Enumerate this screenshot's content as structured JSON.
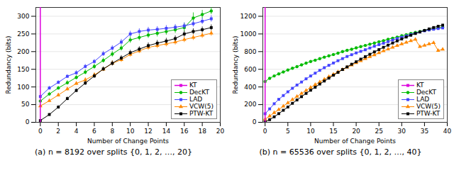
{
  "chart_data": [
    {
      "type": "line",
      "caption": "(a) n = 8192 over splits {0, 1, 2, …, 20}",
      "xlabel": "Number of Change Points",
      "ylabel": "Redundancy (bits)",
      "xlim": [
        -0.5,
        20
      ],
      "ylim": [
        0,
        325
      ],
      "xticks": [
        0,
        2,
        4,
        6,
        8,
        10,
        12,
        14,
        16,
        18,
        20
      ],
      "yticks": [
        0,
        50,
        100,
        150,
        200,
        250,
        300
      ],
      "grid": true,
      "legend": "lower right",
      "x": [
        0,
        1,
        2,
        3,
        4,
        5,
        6,
        7,
        8,
        9,
        10,
        11,
        12,
        13,
        14,
        15,
        16,
        17,
        18,
        19
      ],
      "series": [
        {
          "name": "KT",
          "type": "vline",
          "color": "#dd00dd",
          "marker": "square",
          "x": [
            0
          ]
        },
        {
          "name": "DecKT",
          "color": "#00bb00",
          "marker": "circle",
          "values": [
            60,
            80,
            97,
            112,
            127,
            142,
            158,
            175,
            193,
            210,
            233,
            240,
            247,
            252,
            257,
            262,
            268,
            295,
            305,
            315
          ],
          "yerr": [
            4,
            5,
            5,
            6,
            6,
            7,
            7,
            7,
            8,
            8,
            9,
            9,
            9,
            10,
            10,
            10,
            12,
            15,
            12,
            10
          ]
        },
        {
          "name": "LAD",
          "color": "#4444ff",
          "marker": "square",
          "values": [
            73,
            97,
            113,
            130,
            140,
            158,
            172,
            194,
            210,
            227,
            250,
            257,
            261,
            263,
            266,
            269,
            273,
            279,
            286,
            293
          ],
          "yerr": [
            4,
            5,
            5,
            5,
            6,
            6,
            6,
            7,
            7,
            8,
            8,
            8,
            8,
            8,
            8,
            8,
            9,
            9,
            9,
            9
          ]
        },
        {
          "name": "VCW(5)",
          "color": "#ff8800",
          "marker": "triangle",
          "values": [
            46,
            61,
            77,
            94,
            110,
            120,
            134,
            150,
            167,
            177,
            192,
            202,
            212,
            217,
            222,
            227,
            234,
            240,
            246,
            252
          ],
          "yerr": [
            3,
            4,
            5,
            5,
            5,
            6,
            6,
            6,
            7,
            7,
            7,
            7,
            8,
            8,
            8,
            8,
            8,
            8,
            8,
            8
          ]
        },
        {
          "name": "PTW-KT",
          "color": "#000000",
          "marker": "square",
          "values": [
            5,
            22,
            43,
            67,
            90,
            111,
            131,
            151,
            167,
            182,
            197,
            207,
            217,
            224,
            230,
            237,
            250,
            257,
            262,
            268
          ],
          "yerr": [
            2,
            3,
            4,
            5,
            5,
            6,
            6,
            6,
            7,
            7,
            7,
            7,
            8,
            8,
            8,
            8,
            8,
            8,
            8,
            8
          ]
        }
      ]
    },
    {
      "type": "line",
      "caption": "(b) n = 65536 over splits {0, 1, 2, …, 40}",
      "xlabel": "Number of Change Points",
      "ylabel": "Redundancy (bits)",
      "xlim": [
        -0.5,
        40
      ],
      "ylim": [
        0,
        1300
      ],
      "xticks": [
        0,
        5,
        10,
        15,
        20,
        25,
        30,
        35,
        40
      ],
      "yticks": [
        0,
        200,
        400,
        600,
        800,
        1000,
        1200
      ],
      "grid": true,
      "legend": "lower right",
      "x": [
        0,
        1,
        2,
        3,
        4,
        5,
        6,
        7,
        8,
        9,
        10,
        11,
        12,
        13,
        14,
        15,
        16,
        17,
        18,
        19,
        20,
        21,
        22,
        23,
        24,
        25,
        26,
        27,
        28,
        29,
        30,
        31,
        32,
        33,
        34,
        35,
        36,
        37,
        38,
        39
      ],
      "series": [
        {
          "name": "KT",
          "type": "vline",
          "color": "#dd00dd",
          "marker": "square",
          "x": [
            0
          ]
        },
        {
          "name": "DecKT",
          "color": "#00bb00",
          "marker": "circle",
          "values": [
            462,
            498,
            525,
            548,
            570,
            592,
            612,
            630,
            650,
            670,
            688,
            703,
            720,
            737,
            752,
            767,
            782,
            800,
            814,
            827,
            842,
            857,
            870,
            884,
            897,
            912,
            924,
            940,
            952,
            964,
            980,
            992,
            1005,
            1017,
            1027,
            1040,
            1047,
            1057,
            1067,
            1077
          ],
          "yerr": [
            8,
            8,
            8,
            8,
            9,
            9,
            9,
            9,
            10,
            10,
            10,
            10,
            10,
            10,
            10,
            10,
            10,
            10,
            10,
            10,
            10,
            10,
            10,
            10,
            10,
            10,
            10,
            10,
            10,
            10,
            10,
            10,
            10,
            10,
            10,
            10,
            10,
            10,
            10,
            10
          ]
        },
        {
          "name": "LAD",
          "color": "#4444ff",
          "marker": "square",
          "values": [
            97,
            152,
            210,
            260,
            303,
            345,
            385,
            422,
            456,
            492,
            524,
            556,
            588,
            618,
            645,
            671,
            697,
            721,
            745,
            765,
            785,
            803,
            821,
            841,
            861,
            879,
            895,
            913,
            931,
            948,
            963,
            978,
            993,
            1008,
            1021,
            1035,
            1045,
            1053,
            1061,
            1068
          ],
          "yerr": [
            5,
            6,
            7,
            7,
            8,
            8,
            8,
            8,
            8,
            9,
            9,
            9,
            9,
            9,
            9,
            9,
            9,
            9,
            9,
            9,
            9,
            9,
            9,
            9,
            9,
            9,
            9,
            9,
            9,
            9,
            9,
            9,
            9,
            9,
            9,
            9,
            9,
            9,
            9,
            9
          ]
        },
        {
          "name": "VCW(5)",
          "color": "#ff8800",
          "marker": "triangle",
          "values": [
            35,
            70,
            108,
            144,
            182,
            220,
            257,
            292,
            326,
            360,
            393,
            426,
            456,
            486,
            516,
            543,
            570,
            597,
            623,
            648,
            673,
            696,
            720,
            742,
            763,
            786,
            808,
            828,
            848,
            868,
            886,
            904,
            922,
            938,
            856,
            870,
            886,
            900,
            812,
            826
          ],
          "yerr": [
            4,
            5,
            5,
            6,
            6,
            6,
            7,
            7,
            7,
            7,
            7,
            7,
            7,
            7,
            7,
            7,
            7,
            7,
            7,
            7,
            7,
            7,
            7,
            7,
            7,
            7,
            7,
            7,
            7,
            7,
            7,
            7,
            7,
            7,
            7,
            7,
            7,
            7,
            7,
            7
          ]
        },
        {
          "name": "PTW-KT",
          "color": "#000000",
          "marker": "square",
          "values": [
            5,
            30,
            62,
            98,
            136,
            173,
            215,
            253,
            290,
            327,
            363,
            397,
            433,
            467,
            500,
            533,
            565,
            597,
            627,
            657,
            685,
            715,
            743,
            770,
            797,
            823,
            849,
            873,
            897,
            921,
            943,
            965,
            985,
            1005,
            1023,
            1040,
            1057,
            1073,
            1087,
            1100
          ],
          "yerr": [
            3,
            4,
            5,
            5,
            6,
            6,
            6,
            7,
            7,
            7,
            7,
            7,
            7,
            7,
            7,
            7,
            7,
            7,
            7,
            7,
            7,
            7,
            7,
            7,
            7,
            7,
            7,
            7,
            7,
            7,
            7,
            7,
            7,
            7,
            7,
            7,
            7,
            7,
            7,
            7
          ]
        }
      ]
    }
  ]
}
